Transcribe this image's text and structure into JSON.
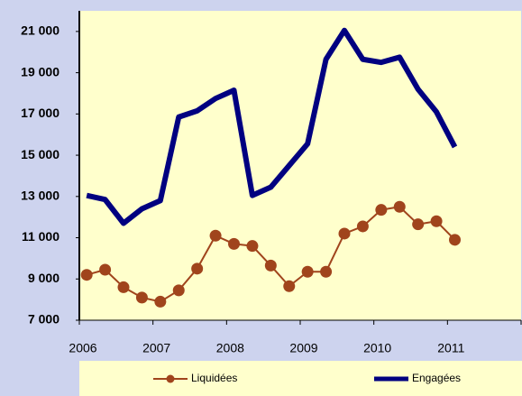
{
  "chart_data": {
    "type": "line",
    "x": [
      2006.1,
      2006.35,
      2006.6,
      2006.85,
      2007.1,
      2007.35,
      2007.6,
      2007.85,
      2008.1,
      2008.35,
      2008.6,
      2008.85,
      2009.1,
      2009.35,
      2009.6,
      2009.85,
      2010.1,
      2010.35,
      2010.6,
      2010.85,
      2011.1
    ],
    "series": [
      {
        "name": "Liquidées",
        "color": "#a0441c",
        "marker": true,
        "values": [
          9200,
          9450,
          8600,
          8100,
          7900,
          8450,
          9500,
          11100,
          10700,
          10600,
          9650,
          8650,
          9350,
          9350,
          11200,
          11550,
          12350,
          12500,
          11650,
          11800,
          10900
        ]
      },
      {
        "name": "Engagées",
        "color": "#000080",
        "marker": false,
        "values": [
          13050,
          12850,
          11700,
          12400,
          12800,
          16850,
          17150,
          17750,
          18150,
          13050,
          13450,
          14500,
          15550,
          19650,
          21050,
          19650,
          19500,
          19750,
          18200,
          17100,
          15400
        ]
      }
    ],
    "xlim": [
      2006,
      2012
    ],
    "xticks": [
      2006,
      2007,
      2008,
      2009,
      2010,
      2011
    ],
    "ylim": [
      7000,
      22000
    ],
    "yticks": [
      {
        "value": 7000,
        "label": "7 000"
      },
      {
        "value": 9000,
        "label": "9 000"
      },
      {
        "value": 11000,
        "label": "11 000"
      },
      {
        "value": 13000,
        "label": "13 000"
      },
      {
        "value": 15000,
        "label": "15 000"
      },
      {
        "value": 17000,
        "label": "17 000"
      },
      {
        "value": 19000,
        "label": "19 000"
      },
      {
        "value": 21000,
        "label": "21 000"
      }
    ],
    "grid": false,
    "legend": "bottom"
  }
}
